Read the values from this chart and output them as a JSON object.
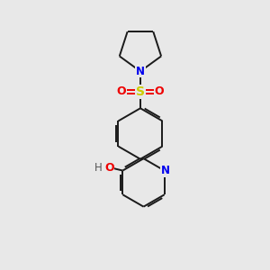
{
  "bg_color": "#e8e8e8",
  "bond_color": "#1a1a1a",
  "N_color": "#0000ee",
  "O_color": "#ee0000",
  "S_color": "#cccc00",
  "H_color": "#555555",
  "line_width": 1.4,
  "dbo": 0.06,
  "fig_width": 3.0,
  "fig_height": 3.0,
  "dpi": 100,
  "xlim": [
    0,
    10
  ],
  "ylim": [
    0,
    10
  ]
}
